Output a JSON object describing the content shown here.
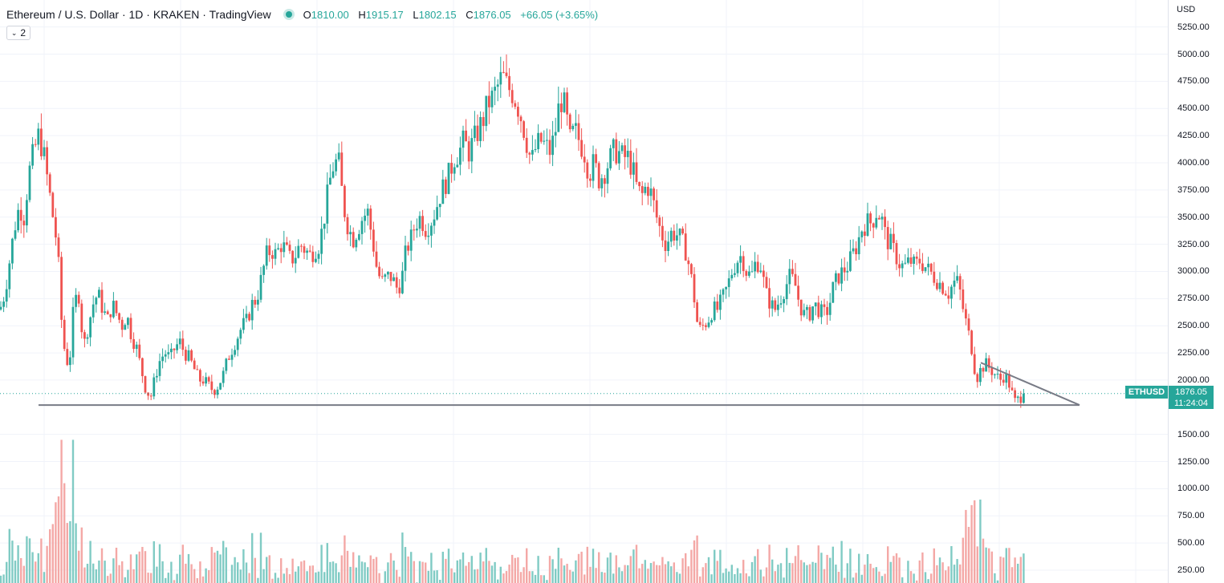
{
  "header": {
    "title": "Ethereum / U.S. Dollar · 1D · KRAKEN · TradingView",
    "ohlc": {
      "o_label": "O",
      "o": "1810.00",
      "h_label": "H",
      "h": "1915.17",
      "l_label": "L",
      "l": "1802.15",
      "c_label": "C",
      "c": "1876.05",
      "change": "+66.05 (+3.65%)"
    },
    "indicator_count": "2"
  },
  "price_axis": {
    "currency": "USD",
    "symbol": "ETHUSD",
    "last_price": "1876.05",
    "countdown": "11:24:04"
  },
  "colors": {
    "up": "#26a69a",
    "down": "#ef5350",
    "up_volume": "#80cbc4",
    "down_volume": "#f4a8a6",
    "grid": "#f0f3fa",
    "trendline": "#787b86"
  },
  "chart_data": {
    "type": "candlestick",
    "symbol": "ETHUSD",
    "exchange": "KRAKEN",
    "interval": "1D",
    "y_ticks": [
      "250.00",
      "500.00",
      "750.00",
      "1000.00",
      "1250.00",
      "1500.00",
      "2000.00",
      "2250.00",
      "2500.00",
      "2750.00",
      "3000.00",
      "3250.00",
      "3500.00",
      "3750.00",
      "4000.00",
      "4250.00",
      "4500.00",
      "4750.00",
      "5000.00",
      "5250.00"
    ],
    "ylim": [
      250,
      5250
    ],
    "last_close": 1876.05,
    "grid": true,
    "price_path": [
      [
        0,
        2650
      ],
      [
        6,
        2800
      ],
      [
        12,
        3100
      ],
      [
        18,
        3400
      ],
      [
        24,
        3600
      ],
      [
        30,
        3500
      ],
      [
        36,
        3900
      ],
      [
        42,
        4100
      ],
      [
        48,
        4250
      ],
      [
        54,
        4100
      ],
      [
        60,
        3800
      ],
      [
        66,
        3500
      ],
      [
        72,
        3200
      ],
      [
        76,
        2600
      ],
      [
        80,
        2300
      ],
      [
        86,
        2100
      ],
      [
        92,
        2700
      ],
      [
        98,
        2800
      ],
      [
        104,
        2300
      ],
      [
        110,
        2500
      ],
      [
        116,
        2700
      ],
      [
        122,
        2800
      ],
      [
        128,
        2650
      ],
      [
        134,
        2550
      ],
      [
        140,
        2700
      ],
      [
        146,
        2600
      ],
      [
        152,
        2500
      ],
      [
        158,
        2600
      ],
      [
        164,
        2400
      ],
      [
        170,
        2300
      ],
      [
        176,
        2100
      ],
      [
        182,
        1900
      ],
      [
        188,
        1850
      ],
      [
        194,
        2050
      ],
      [
        200,
        2200
      ],
      [
        206,
        2250
      ],
      [
        212,
        2200
      ],
      [
        218,
        2300
      ],
      [
        224,
        2350
      ],
      [
        230,
        2250
      ],
      [
        236,
        2200
      ],
      [
        242,
        2100
      ],
      [
        248,
        2000
      ],
      [
        254,
        2000
      ],
      [
        260,
        1950
      ],
      [
        266,
        1900
      ],
      [
        272,
        1950
      ],
      [
        278,
        2050
      ],
      [
        284,
        2200
      ],
      [
        290,
        2300
      ],
      [
        296,
        2400
      ],
      [
        302,
        2500
      ],
      [
        308,
        2550
      ],
      [
        314,
        2700
      ],
      [
        320,
        2750
      ],
      [
        326,
        2950
      ],
      [
        332,
        3150
      ],
      [
        338,
        3200
      ],
      [
        344,
        3150
      ],
      [
        350,
        3250
      ],
      [
        356,
        3200
      ],
      [
        362,
        3100
      ],
      [
        368,
        3150
      ],
      [
        374,
        3250
      ],
      [
        380,
        3200
      ],
      [
        386,
        3150
      ],
      [
        392,
        3200
      ],
      [
        398,
        3250
      ],
      [
        404,
        3500
      ],
      [
        410,
        3800
      ],
      [
        416,
        4000
      ],
      [
        422,
        4000
      ],
      [
        428,
        3600
      ],
      [
        434,
        3400
      ],
      [
        440,
        3300
      ],
      [
        446,
        3400
      ],
      [
        452,
        3500
      ],
      [
        458,
        3550
      ],
      [
        464,
        3300
      ],
      [
        470,
        3000
      ],
      [
        476,
        2900
      ],
      [
        482,
        2950
      ],
      [
        488,
        2950
      ],
      [
        494,
        2850
      ],
      [
        500,
        2900
      ],
      [
        506,
        3200
      ],
      [
        512,
        3300
      ],
      [
        518,
        3450
      ],
      [
        524,
        3500
      ],
      [
        530,
        3400
      ],
      [
        536,
        3450
      ],
      [
        542,
        3550
      ],
      [
        548,
        3700
      ],
      [
        554,
        3800
      ],
      [
        560,
        3900
      ],
      [
        566,
        4050
      ],
      [
        572,
        4100
      ],
      [
        578,
        4200
      ],
      [
        584,
        4100
      ],
      [
        590,
        4200
      ],
      [
        596,
        4300
      ],
      [
        602,
        4400
      ],
      [
        608,
        4550
      ],
      [
        614,
        4600
      ],
      [
        620,
        4700
      ],
      [
        626,
        4800
      ],
      [
        632,
        4700
      ],
      [
        638,
        4650
      ],
      [
        644,
        4550
      ],
      [
        650,
        4400
      ],
      [
        656,
        4200
      ],
      [
        662,
        4000
      ],
      [
        668,
        4150
      ],
      [
        674,
        4200
      ],
      [
        680,
        4150
      ],
      [
        686,
        4100
      ],
      [
        692,
        4300
      ],
      [
        698,
        4600
      ],
      [
        704,
        4500
      ],
      [
        710,
        4200
      ],
      [
        716,
        4300
      ],
      [
        722,
        4200
      ],
      [
        728,
        4100
      ],
      [
        734,
        3900
      ],
      [
        740,
        4000
      ],
      [
        746,
        3850
      ],
      [
        752,
        3900
      ],
      [
        758,
        4000
      ],
      [
        764,
        4100
      ],
      [
        770,
        4100
      ],
      [
        776,
        4050
      ],
      [
        782,
        4050
      ],
      [
        788,
        3950
      ],
      [
        794,
        3750
      ],
      [
        800,
        3700
      ],
      [
        806,
        3800
      ],
      [
        812,
        3700
      ],
      [
        818,
        3500
      ],
      [
        824,
        3350
      ],
      [
        830,
        3250
      ],
      [
        836,
        3350
      ],
      [
        842,
        3350
      ],
      [
        848,
        3300
      ],
      [
        854,
        3200
      ],
      [
        860,
        3000
      ],
      [
        866,
        2700
      ],
      [
        870,
        2450
      ],
      [
        876,
        2500
      ],
      [
        882,
        2550
      ],
      [
        888,
        2650
      ],
      [
        894,
        2650
      ],
      [
        900,
        2750
      ],
      [
        906,
        2850
      ],
      [
        912,
        3000
      ],
      [
        918,
        3100
      ],
      [
        924,
        3150
      ],
      [
        930,
        3000
      ],
      [
        936,
        2950
      ],
      [
        942,
        3100
      ],
      [
        948,
        3050
      ],
      [
        954,
        2800
      ],
      [
        960,
        2700
      ],
      [
        966,
        2650
      ],
      [
        972,
        2750
      ],
      [
        978,
        2850
      ],
      [
        984,
        2950
      ],
      [
        990,
        2900
      ],
      [
        996,
        2700
      ],
      [
        1002,
        2600
      ],
      [
        1008,
        2600
      ],
      [
        1014,
        2700
      ],
      [
        1020,
        2650
      ],
      [
        1026,
        2600
      ],
      [
        1032,
        2650
      ],
      [
        1038,
        2850
      ],
      [
        1044,
        2950
      ],
      [
        1050,
        3000
      ],
      [
        1056,
        3050
      ],
      [
        1062,
        3150
      ],
      [
        1068,
        3250
      ],
      [
        1074,
        3400
      ],
      [
        1080,
        3450
      ],
      [
        1086,
        3450
      ],
      [
        1092,
        3550
      ],
      [
        1098,
        3500
      ],
      [
        1104,
        3300
      ],
      [
        1110,
        3250
      ],
      [
        1116,
        3150
      ],
      [
        1122,
        3050
      ],
      [
        1128,
        3050
      ],
      [
        1134,
        3100
      ],
      [
        1140,
        3050
      ],
      [
        1146,
        3100
      ],
      [
        1152,
        3050
      ],
      [
        1158,
        3000
      ],
      [
        1164,
        2950
      ],
      [
        1170,
        2900
      ],
      [
        1176,
        2850
      ],
      [
        1182,
        2800
      ],
      [
        1188,
        2900
      ],
      [
        1194,
        2900
      ],
      [
        1200,
        2650
      ],
      [
        1206,
        2450
      ],
      [
        1212,
        2250
      ],
      [
        1216,
        2000
      ],
      [
        1222,
        2100
      ],
      [
        1228,
        2150
      ],
      [
        1234,
        2100
      ],
      [
        1240,
        2050
      ],
      [
        1246,
        2000
      ],
      [
        1252,
        2050
      ],
      [
        1258,
        1950
      ],
      [
        1264,
        1800
      ],
      [
        1270,
        1830
      ],
      [
        1276,
        1876
      ]
    ],
    "trendlines": [
      {
        "label": "support",
        "from": {
          "bar": 48,
          "price": 1770
        },
        "to": {
          "bar": 1345,
          "price": 1770
        }
      },
      {
        "label": "descending",
        "from": {
          "bar": 1222,
          "price": 2160
        },
        "to": {
          "bar": 1345,
          "price": 1770
        }
      }
    ]
  }
}
